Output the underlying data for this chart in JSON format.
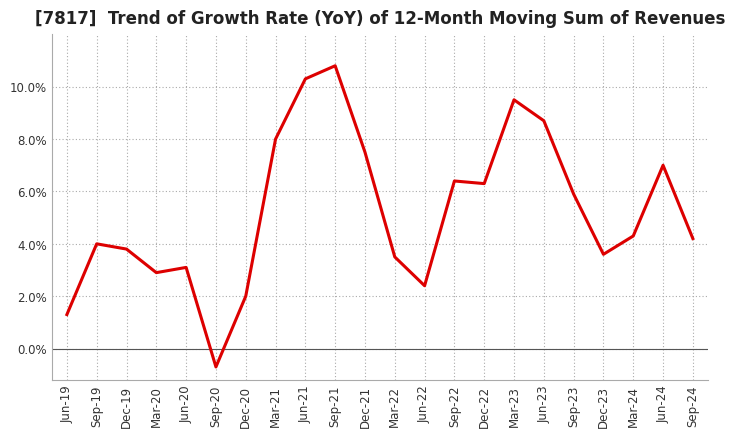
{
  "title": "[7817]  Trend of Growth Rate (YoY) of 12-Month Moving Sum of Revenues",
  "x_labels": [
    "Jun-19",
    "Sep-19",
    "Dec-19",
    "Mar-20",
    "Jun-20",
    "Sep-20",
    "Dec-20",
    "Mar-21",
    "Jun-21",
    "Sep-21",
    "Dec-21",
    "Mar-22",
    "Jun-22",
    "Sep-22",
    "Dec-22",
    "Mar-23",
    "Jun-23",
    "Sep-23",
    "Dec-23",
    "Mar-24",
    "Jun-24",
    "Sep-24"
  ],
  "y_values": [
    1.3,
    4.0,
    3.8,
    2.9,
    3.1,
    -0.7,
    2.0,
    8.0,
    10.3,
    10.8,
    7.5,
    3.5,
    2.4,
    6.4,
    6.3,
    9.5,
    8.7,
    5.9,
    3.6,
    4.3,
    7.0,
    4.2
  ],
  "line_color": "#dd0000",
  "line_width": 2.2,
  "background_color": "#ffffff",
  "plot_bg_color": "#ffffff",
  "grid_color": "#aaaaaa",
  "title_fontsize": 12,
  "tick_fontsize": 8.5,
  "ylim": [
    -1.2,
    12.0
  ],
  "yticks": [
    0.0,
    2.0,
    4.0,
    6.0,
    8.0,
    10.0
  ]
}
